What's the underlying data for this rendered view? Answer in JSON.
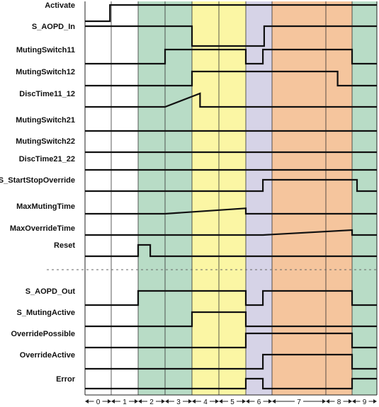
{
  "diagram": {
    "signals": [
      {
        "name": "Activate",
        "trace": [
          [
            0,
            0
          ],
          [
            0.95,
            0
          ],
          [
            0.95,
            1
          ],
          [
            10,
            1
          ]
        ]
      },
      {
        "name": "S_AOPD_In",
        "trace": [
          [
            0,
            1
          ],
          [
            4,
            1
          ],
          [
            4,
            0
          ],
          [
            6.7,
            0
          ],
          [
            6.7,
            1
          ],
          [
            10,
            1
          ]
        ]
      },
      {
        "name": "MutingSwitch11",
        "trace": [
          [
            0,
            0
          ],
          [
            3,
            0
          ],
          [
            3,
            1
          ],
          [
            6,
            1
          ],
          [
            6,
            0
          ],
          [
            6.65,
            0
          ],
          [
            6.65,
            1
          ],
          [
            9,
            1
          ],
          [
            9,
            0
          ],
          [
            10,
            0
          ]
        ]
      },
      {
        "name": "MutingSwitch12",
        "trace": [
          [
            0,
            0
          ],
          [
            4,
            0
          ],
          [
            4,
            1
          ],
          [
            8.45,
            1
          ],
          [
            8.45,
            0
          ],
          [
            10,
            0
          ]
        ]
      },
      {
        "name": "DiscTime11_12",
        "trace": [
          [
            0,
            0
          ],
          [
            3,
            0
          ],
          [
            4.3,
            1
          ],
          [
            4.3,
            0
          ],
          [
            10,
            0
          ]
        ]
      },
      {
        "name": "MutingSwitch21",
        "trace": [
          [
            0,
            0
          ],
          [
            10,
            0
          ]
        ]
      },
      {
        "name": "MutingSwitch22",
        "trace": [
          [
            0,
            0
          ],
          [
            10,
            0
          ]
        ]
      },
      {
        "name": "DiscTime21_22",
        "trace": [
          [
            0,
            0
          ],
          [
            10,
            0
          ]
        ]
      },
      {
        "name": "S_StartStopOverride",
        "trace": [
          [
            0,
            0
          ],
          [
            6.65,
            0
          ],
          [
            6.65,
            1
          ],
          [
            9.2,
            1
          ],
          [
            9.2,
            0
          ],
          [
            10,
            0
          ]
        ]
      },
      {
        "name": "MaxMutingTime",
        "trace": [
          [
            0,
            0
          ],
          [
            3,
            0
          ],
          [
            6,
            0.7
          ],
          [
            6,
            0
          ],
          [
            10,
            0
          ]
        ]
      },
      {
        "name": "MaxOverrideTime",
        "trace": [
          [
            0,
            0
          ],
          [
            6.65,
            0
          ],
          [
            9,
            0.7
          ],
          [
            9,
            0
          ],
          [
            10,
            0
          ]
        ]
      },
      {
        "name": "Reset",
        "trace": [
          [
            0,
            0
          ],
          [
            2,
            0
          ],
          [
            2,
            1
          ],
          [
            2.45,
            1
          ],
          [
            2.45,
            0
          ],
          [
            10,
            0
          ]
        ]
      },
      {
        "name": "S_AOPD_Out",
        "trace": [
          [
            0,
            0
          ],
          [
            2,
            0
          ],
          [
            2,
            1
          ],
          [
            6,
            1
          ],
          [
            6,
            0
          ],
          [
            6.65,
            0
          ],
          [
            6.65,
            1
          ],
          [
            9,
            1
          ],
          [
            9,
            0
          ],
          [
            10,
            0
          ]
        ]
      },
      {
        "name": "S_MutingActive",
        "trace": [
          [
            0,
            0
          ],
          [
            4,
            0
          ],
          [
            4,
            1
          ],
          [
            6,
            1
          ],
          [
            6,
            0
          ],
          [
            10,
            0
          ]
        ]
      },
      {
        "name": "OverridePossible",
        "trace": [
          [
            0,
            0
          ],
          [
            6,
            0
          ],
          [
            6,
            1
          ],
          [
            9,
            1
          ],
          [
            9,
            0
          ],
          [
            10,
            0
          ]
        ]
      },
      {
        "name": "OverrideActive",
        "trace": [
          [
            0,
            0
          ],
          [
            6.65,
            0
          ],
          [
            6.65,
            1
          ],
          [
            9,
            1
          ],
          [
            9,
            0
          ],
          [
            10,
            0
          ]
        ]
      },
      {
        "name": "Error",
        "trace": [
          [
            0,
            0
          ],
          [
            6,
            0
          ],
          [
            6,
            1
          ],
          [
            6.65,
            1
          ],
          [
            6.65,
            0
          ],
          [
            9,
            0
          ],
          [
            9,
            1
          ],
          [
            10,
            1
          ]
        ]
      }
    ],
    "separator_after": "Reset",
    "steps": [
      "0",
      "1",
      "2",
      "3",
      "4",
      "5",
      "6",
      "7",
      "8",
      "9"
    ],
    "phases": [
      {
        "from": 2,
        "to": 4,
        "color": "#b8dcc6"
      },
      {
        "from": 4,
        "to": 6,
        "color": "#fbf6a4"
      },
      {
        "from": 6,
        "to": 7,
        "color": "#d6d3e7"
      },
      {
        "from": 7,
        "to": 9,
        "color": "#f5c59d"
      },
      {
        "from": 9,
        "to": 10,
        "color": "#b8dcc6"
      }
    ]
  }
}
